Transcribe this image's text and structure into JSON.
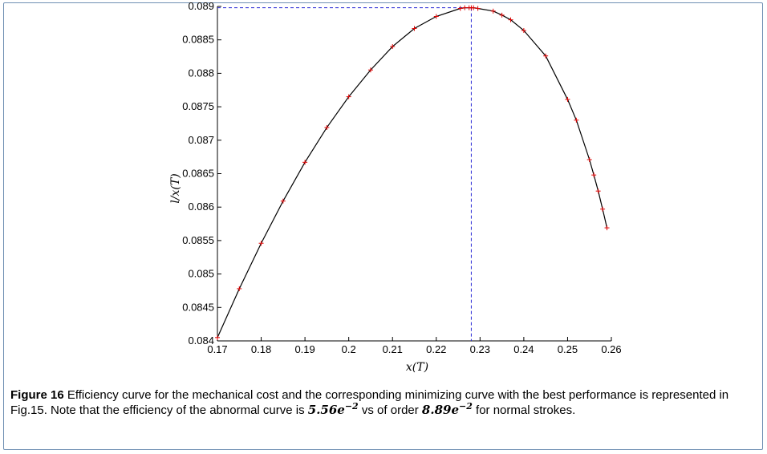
{
  "colors": {
    "frame": "#6e8fb3",
    "curve": "#000000",
    "markers": "#e00000",
    "guide": "#2b2bd6"
  },
  "chart_data": {
    "type": "line",
    "xlabel": "x(T)",
    "ylabel": "l/x(T)",
    "xlim": [
      0.17,
      0.26
    ],
    "ylim": [
      0.084,
      0.089
    ],
    "x_ticks": [
      "0.17",
      "0.18",
      "0.19",
      "0.2",
      "0.21",
      "0.22",
      "0.23",
      "0.24",
      "0.25",
      "0.26"
    ],
    "y_ticks": [
      "0.084",
      "0.0845",
      "0.085",
      "0.0855",
      "0.086",
      "0.0865",
      "0.087",
      "0.0875",
      "0.088",
      "0.0885",
      "0.089"
    ],
    "grid": false,
    "markers": "+",
    "series": [
      {
        "x": [
          0.17,
          0.175,
          0.18,
          0.185,
          0.19,
          0.195,
          0.2,
          0.205,
          0.21,
          0.215,
          0.22,
          0.2255,
          0.2265,
          0.2275,
          0.228,
          0.2285,
          0.2295,
          0.233,
          0.235,
          0.237,
          0.24,
          0.245,
          0.25,
          0.252,
          0.255,
          0.256,
          0.257,
          0.258,
          0.259
        ],
        "y": [
          0.08405,
          0.08478,
          0.08546,
          0.08609,
          0.08667,
          0.08719,
          0.08765,
          0.08805,
          0.0884,
          0.08867,
          0.08885,
          0.08897,
          0.08898,
          0.08898,
          0.08898,
          0.08898,
          0.08897,
          0.08893,
          0.08887,
          0.0888,
          0.08864,
          0.08826,
          0.08761,
          0.0873,
          0.08671,
          0.08648,
          0.08624,
          0.08597,
          0.08569
        ]
      }
    ],
    "reference_lines": {
      "x": 0.228,
      "y": 0.08898
    }
  },
  "caption": {
    "label": "Figure 16",
    "text": " Efficiency curve for the mechanical cost and the corresponding minimizing curve with the best performance is represented in Fig.15. Note that the efficiency of the abnormal curve is ",
    "value1_base": "5.56e",
    "value1_exp": "−2",
    "text_mid": " vs of order ",
    "value2_base": "8.89e",
    "value2_exp": "−2",
    "text_end": " for normal strokes."
  }
}
